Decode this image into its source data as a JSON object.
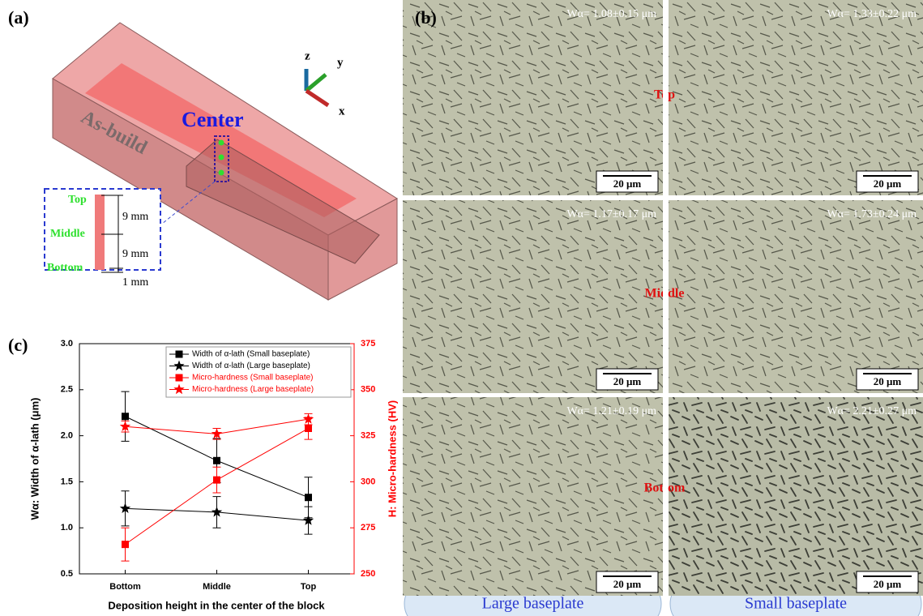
{
  "panel_a": {
    "label": "(a)",
    "block_label": "As-build",
    "center_label": "Center",
    "axes": [
      "z",
      "y",
      "x"
    ],
    "inset": {
      "points": [
        "Top",
        "Middle",
        "Bottom"
      ],
      "dims": [
        "9 mm",
        "9 mm",
        "1 mm"
      ]
    }
  },
  "panel_b": {
    "label": "(b)",
    "rows": [
      "Top",
      "Middle",
      "Bottom"
    ],
    "columns": [
      "Large baseplate",
      "Small baseplate"
    ],
    "widths": [
      [
        "Wα= 1.08±0.15 μm",
        "Wα= 1.33±0.22 μm"
      ],
      [
        "Wα= 1.17±0.17 μm",
        "Wα= 1.73±0.24 μm"
      ],
      [
        "Wα= 1.21±0.19 μm",
        "Wα= 2.21±0.27 μm"
      ]
    ],
    "scale_bar": "20 μm"
  },
  "chart_data": {
    "type": "line",
    "label": "(c)",
    "x_label": "Deposition height in the center of the block",
    "y_label": "Wα: Width of α-lath (μm)",
    "y2_label": "H: Micro-hardness (HV)",
    "categories": [
      "Bottom",
      "Middle",
      "Top"
    ],
    "ylim": [
      0.5,
      3.0
    ],
    "yticks": [
      {
        "value": 0.5,
        "label": "0.5"
      },
      {
        "value": 1.0,
        "label": "1.0"
      },
      {
        "value": 1.5,
        "label": "1.5"
      },
      {
        "value": 2.0,
        "label": "2.0"
      },
      {
        "value": 2.5,
        "label": "2.5"
      },
      {
        "value": 3.0,
        "label": "3.0"
      }
    ],
    "y2lim": [
      250,
      375
    ],
    "y2ticks": [
      250,
      275,
      300,
      325,
      350,
      375
    ],
    "legend": "top-right",
    "series": [
      {
        "name": "Width of α-lath (Small baseplate)",
        "color": "#000000",
        "marker": "square",
        "values": [
          2.21,
          1.73,
          1.33
        ],
        "errors": [
          0.27,
          0.24,
          0.22
        ]
      },
      {
        "name": "Width of α-lath (Large baseplate)",
        "color": "#000000",
        "marker": "star",
        "values": [
          1.21,
          1.17,
          1.08
        ],
        "errors": [
          0.19,
          0.17,
          0.15
        ]
      },
      {
        "name": "Micro-hardness (Small baseplate)",
        "color": "#ff0000",
        "marker": "square",
        "axis": "y2",
        "values": [
          266,
          301,
          329
        ],
        "errors": [
          9,
          7,
          6
        ]
      },
      {
        "name": "Micro-hardness (Large baseplate)",
        "color": "#ff0000",
        "marker": "star",
        "axis": "y2",
        "values": [
          330,
          326,
          334
        ],
        "errors": [
          3,
          3,
          3
        ]
      }
    ]
  }
}
